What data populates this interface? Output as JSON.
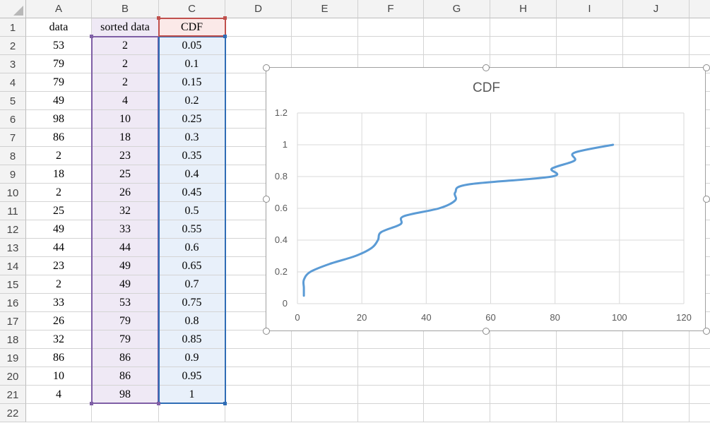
{
  "columns": [
    "A",
    "B",
    "C",
    "D",
    "E",
    "F",
    "G",
    "H",
    "I",
    "J"
  ],
  "rows": [
    "1",
    "2",
    "3",
    "4",
    "5",
    "6",
    "7",
    "8",
    "9",
    "10",
    "11",
    "12",
    "13",
    "14",
    "15",
    "16",
    "17",
    "18",
    "19",
    "20",
    "21",
    "22"
  ],
  "headers": [
    "data",
    "sorted data",
    "CDF"
  ],
  "table": [
    [
      "53",
      "2",
      "0.05"
    ],
    [
      "79",
      "2",
      "0.1"
    ],
    [
      "79",
      "2",
      "0.15"
    ],
    [
      "49",
      "4",
      "0.2"
    ],
    [
      "98",
      "10",
      "0.25"
    ],
    [
      "86",
      "18",
      "0.3"
    ],
    [
      "2",
      "23",
      "0.35"
    ],
    [
      "18",
      "25",
      "0.4"
    ],
    [
      "2",
      "26",
      "0.45"
    ],
    [
      "25",
      "32",
      "0.5"
    ],
    [
      "49",
      "33",
      "0.55"
    ],
    [
      "44",
      "44",
      "0.6"
    ],
    [
      "23",
      "49",
      "0.65"
    ],
    [
      "2",
      "49",
      "0.7"
    ],
    [
      "33",
      "53",
      "0.75"
    ],
    [
      "26",
      "79",
      "0.8"
    ],
    [
      "32",
      "79",
      "0.85"
    ],
    [
      "86",
      "86",
      "0.9"
    ],
    [
      "10",
      "86",
      "0.95"
    ],
    [
      "4",
      "98",
      "1"
    ]
  ],
  "colors": {
    "line": "#5b9bd5",
    "range_b": "#7f5fa6",
    "range_c": "#2f6db5",
    "range_hdr": "#c0504d"
  },
  "chart_data": {
    "type": "scatter",
    "title": "CDF",
    "xlabel": "",
    "ylabel": "",
    "xlim": [
      0,
      120
    ],
    "ylim": [
      0,
      1.2
    ],
    "xticks": [
      "0",
      "20",
      "40",
      "60",
      "80",
      "100",
      "120"
    ],
    "yticks": [
      "0",
      "0.2",
      "0.4",
      "0.6",
      "0.8",
      "1",
      "1.2"
    ],
    "grid": true,
    "smooth_line": true,
    "series": [
      {
        "x": [
          2,
          2,
          2,
          4,
          10,
          18,
          23,
          25,
          26,
          32,
          33,
          44,
          49,
          49,
          53,
          79,
          79,
          86,
          86,
          98
        ],
        "y": [
          0.05,
          0.1,
          0.15,
          0.2,
          0.25,
          0.3,
          0.35,
          0.4,
          0.45,
          0.5,
          0.55,
          0.6,
          0.65,
          0.7,
          0.75,
          0.8,
          0.85,
          0.9,
          0.95,
          1
        ]
      }
    ]
  }
}
